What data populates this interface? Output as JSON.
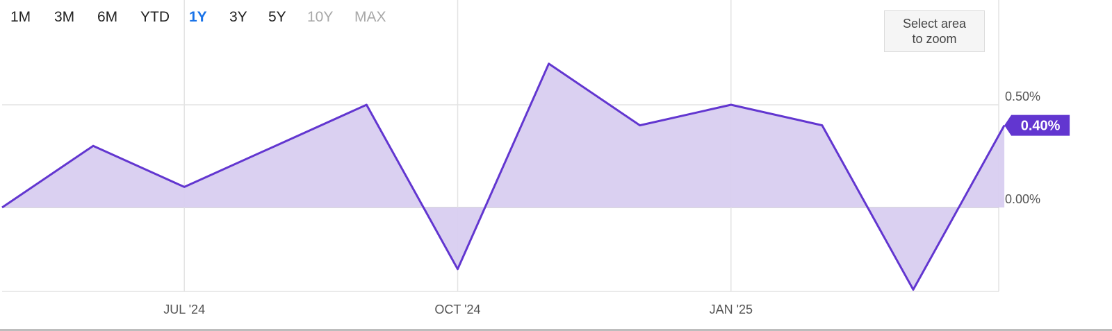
{
  "range_selector": {
    "buttons": [
      {
        "label": "1M",
        "state": "normal"
      },
      {
        "label": "3M",
        "state": "normal"
      },
      {
        "label": "6M",
        "state": "normal"
      },
      {
        "label": "YTD",
        "state": "normal"
      },
      {
        "label": "1Y",
        "state": "active"
      },
      {
        "label": "3Y",
        "state": "normal"
      },
      {
        "label": "5Y",
        "state": "normal"
      },
      {
        "label": "10Y",
        "state": "disabled"
      },
      {
        "label": "MAX",
        "state": "disabled"
      }
    ]
  },
  "zoom_hint": {
    "line1": "Select area",
    "line2": "to zoom"
  },
  "colors": {
    "line": "#6236d0",
    "fill": "#d8cdf0",
    "active_button": "#1a73e8",
    "disabled_button": "#a8a8a8",
    "grid": "#e3e3e3",
    "current_value_badge": "#6236d0"
  },
  "chart_data": {
    "type": "area",
    "x": [
      "2024-05",
      "2024-06",
      "2024-07",
      "2024-08",
      "2024-09",
      "2024-10",
      "2024-11",
      "2024-12",
      "2025-01",
      "2025-02",
      "2025-03",
      "2025-04"
    ],
    "series": [
      {
        "values": [
          0.0,
          0.3,
          0.1,
          0.3,
          0.5,
          -0.3,
          0.7,
          0.4,
          0.5,
          0.4,
          -0.4,
          0.4
        ]
      }
    ],
    "x_ticks": [
      {
        "x": "2024-07",
        "label": "JUL '24"
      },
      {
        "x": "2024-10",
        "label": "OCT '24"
      },
      {
        "x": "2025-01",
        "label": "JAN '25"
      }
    ],
    "y_ticks": [
      {
        "value": 0.5,
        "label": "0.50%"
      },
      {
        "value": 0.0,
        "label": "0.00%"
      }
    ],
    "ylim": [
      -0.4,
      1.0
    ],
    "grid": true,
    "last_value_label": "0.40%"
  }
}
